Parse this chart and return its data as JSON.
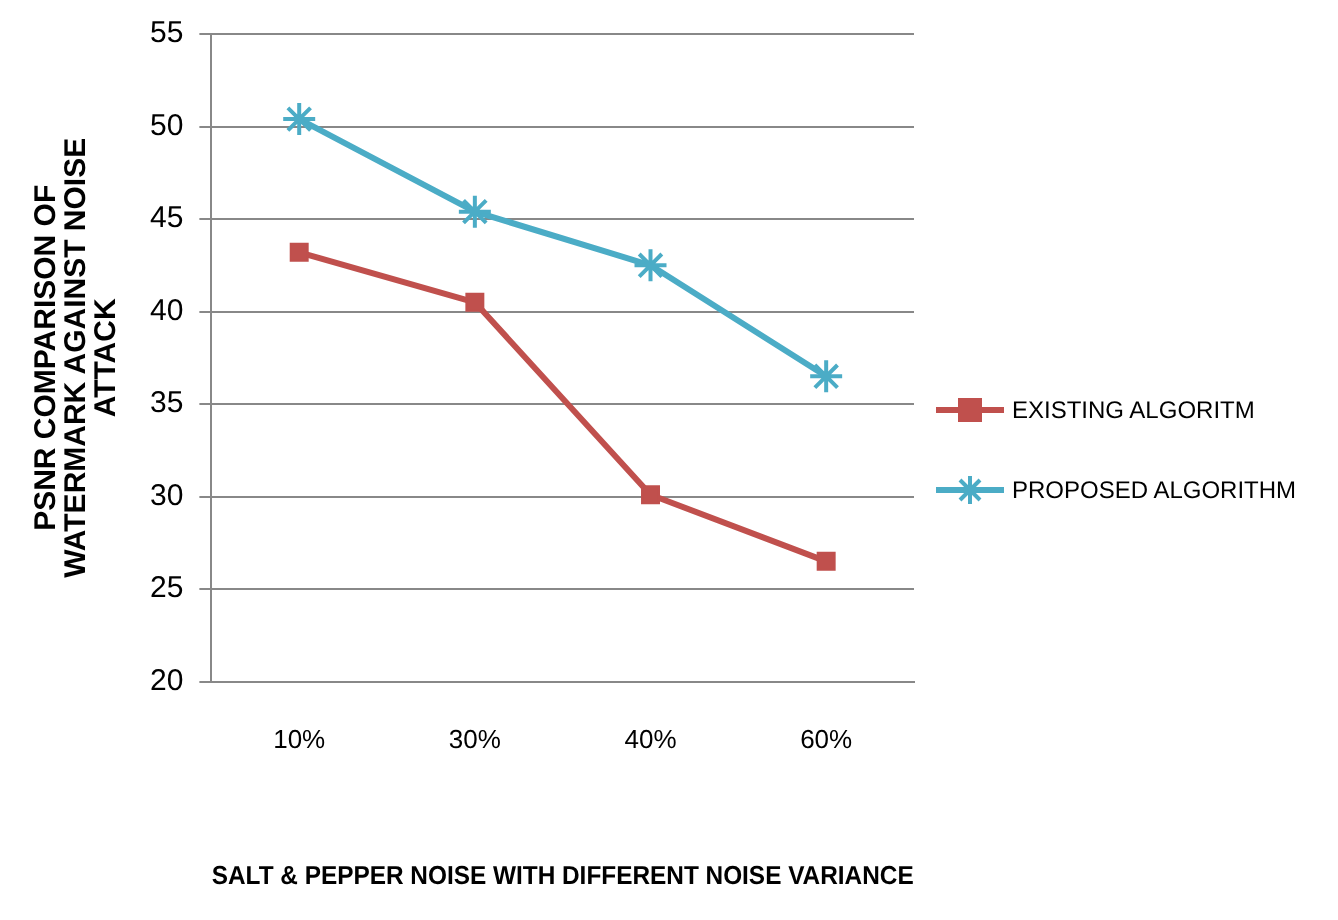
{
  "chart_data": {
    "type": "line",
    "xlabel": "SALT & PEPPER NOISE WITH DIFFERENT NOISE VARIANCE",
    "ylabel": "PSNR COMPARISON OF WATERMARK AGAINST NOISE ATTACK",
    "categories": [
      "10%",
      "30%",
      "40%",
      "60%"
    ],
    "series": [
      {
        "name": "EXISTING ALGORITM",
        "color": "#c0504d",
        "marker": "square",
        "values": [
          43.2,
          40.5,
          30.1,
          26.5
        ]
      },
      {
        "name": "PROPOSED ALGORITHM",
        "color": "#4bacc6",
        "marker": "cross",
        "values": [
          50.4,
          45.4,
          42.5,
          36.5
        ]
      }
    ],
    "ylim": [
      20,
      55
    ],
    "yticks": [
      20,
      25,
      30,
      35,
      40,
      45,
      50,
      55
    ],
    "grid": "y",
    "legend": "right"
  }
}
